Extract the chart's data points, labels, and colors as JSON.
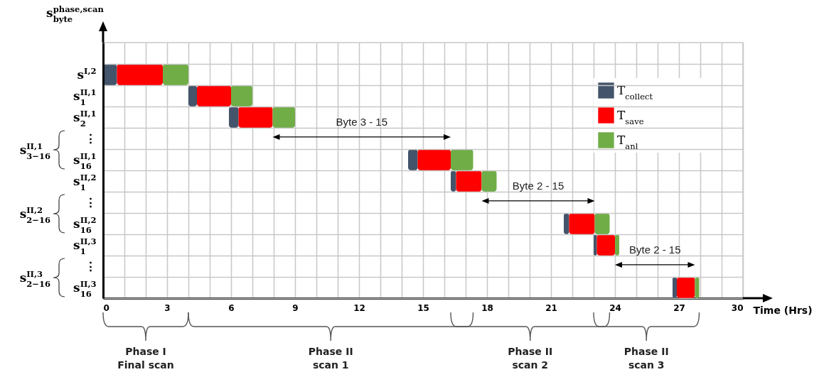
{
  "chart_data": {
    "type": "bar",
    "orientation": "horizontal",
    "categories": [
      "s$^{I,2}$",
      "s$_{1}$$^{II,1}$",
      "s$_{2}$$^{II,1}$",
      "⋮",
      "s$_{16}$$^{II,1}$",
      "s$_{1}$$^{II,2}$",
      "⋮",
      "s$_{16}$$^{II,2}$",
      "s$_{1}$$^{II,3}$",
      "⋮",
      "s$_{16}$$^{II,3}$"
    ],
    "series": [
      {
        "name": "T$_{collect}$",
        "color": "#44546a",
        "base": [
          0,
          4.0,
          5.9,
          null,
          14.3,
          16.3,
          null,
          21.6,
          23.0,
          null,
          26.7
        ],
        "values": [
          0.65,
          0.4,
          0.45,
          null,
          0.45,
          0.25,
          null,
          0.25,
          0.15,
          null,
          0.2
        ]
      },
      {
        "name": "T$_{save}$",
        "color": "#ff0000",
        "base": [
          0.65,
          4.4,
          6.35,
          null,
          14.75,
          16.55,
          null,
          21.85,
          23.15,
          null,
          26.9
        ],
        "values": [
          2.15,
          1.6,
          1.6,
          null,
          1.55,
          1.2,
          null,
          1.2,
          0.85,
          null,
          0.85
        ]
      },
      {
        "name": "T$_{anl}$",
        "color": "#70ad47",
        "base": [
          2.8,
          6.0,
          7.95,
          null,
          16.3,
          17.75,
          null,
          23.05,
          24.0,
          null,
          27.75
        ],
        "values": [
          1.2,
          1.0,
          1.05,
          null,
          1.05,
          0.7,
          null,
          0.7,
          0.2,
          null,
          0.2
        ]
      }
    ],
    "xlabel": "Time (Hrs)",
    "ylabel": "s$_{byte}$$^{phase,scan}$",
    "xlim": [
      0,
      30
    ],
    "xticks": [
      0,
      {
        "value": 1,
        "label": null
      },
      {
        "value": 2,
        "label": null
      },
      3,
      {
        "value": 4,
        "label": null
      },
      {
        "value": 5,
        "label": null
      },
      6,
      {
        "value": 7,
        "label": null
      },
      {
        "value": 8,
        "label": null
      },
      9,
      {
        "value": 10,
        "label": null
      },
      {
        "value": 11,
        "label": null
      },
      12,
      {
        "value": 13,
        "label": null
      },
      {
        "value": 14,
        "label": null
      },
      15,
      {
        "value": 16,
        "label": null
      },
      {
        "value": 17,
        "label": null
      },
      18,
      {
        "value": 19,
        "label": null
      },
      {
        "value": 20,
        "label": null
      },
      21,
      {
        "value": 22,
        "label": null
      },
      {
        "value": 23,
        "label": null
      },
      24,
      {
        "value": 25,
        "label": null
      },
      {
        "value": 26,
        "label": null
      },
      27,
      {
        "value": 28,
        "label": null
      },
      {
        "value": 29,
        "label": null
      },
      30
    ],
    "grid": true,
    "legend": "top right",
    "annotations": [
      "Byte 3 - 15",
      "Byte 2 - 15",
      "Byte 2 - 15",
      "s$_{3−16}$$^{II,1}$",
      "s$_{2−16}$$^{II,2}$",
      "s$_{2−16}$$^{II,3}$",
      "Phase I\nFinal scan",
      "Phase II\nscan 1",
      "Phase II\nscan 2",
      "Phase II\nscan 3"
    ]
  }
}
